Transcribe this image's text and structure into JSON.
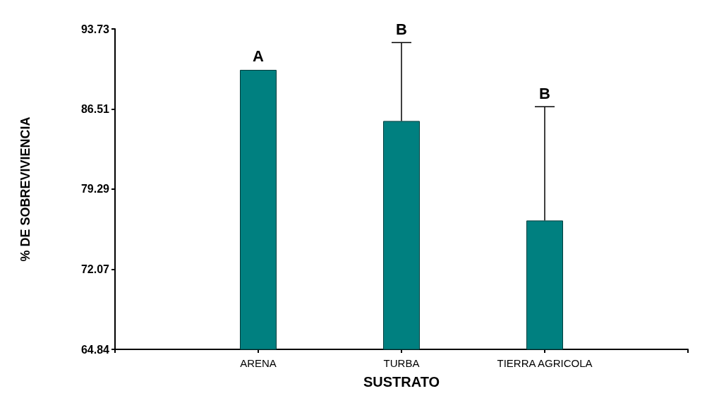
{
  "chart_data": {
    "type": "bar",
    "xlabel": "SUSTRATO",
    "ylabel": "% DE SOBREVIVIENCIA",
    "categories": [
      null,
      "ARENA",
      "TURBA",
      "TIERRA AGRICOLA",
      null
    ],
    "values": [
      null,
      90.04,
      85.43,
      76.46,
      null
    ],
    "errors": [
      null,
      null,
      [
        85.43,
        92.5
      ],
      [
        76.46,
        86.72
      ],
      null
    ],
    "color": "#008080",
    "ylim": [
      64.84,
      93.73
    ],
    "yticks": [
      64.84,
      72.07,
      79.29,
      86.51,
      93.73
    ],
    "annotations": [
      "A",
      "B",
      "B"
    ]
  }
}
